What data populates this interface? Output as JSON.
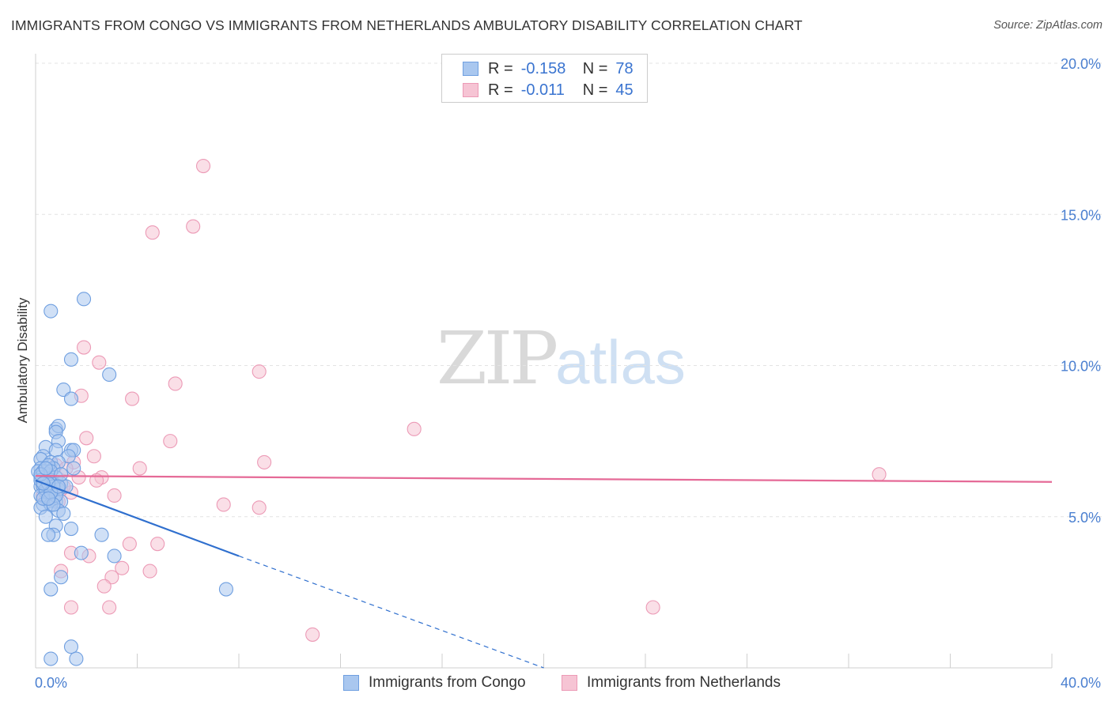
{
  "title": "IMMIGRANTS FROM CONGO VS IMMIGRANTS FROM NETHERLANDS AMBULATORY DISABILITY CORRELATION CHART",
  "source": "Source: ZipAtlas.com",
  "watermark": {
    "zip": "ZIP",
    "atlas": "atlas"
  },
  "legend": {
    "rows": [
      {
        "r_label": "R =",
        "r_value": "-0.158",
        "n_label": "N =",
        "n_value": "78"
      },
      {
        "r_label": "R =",
        "r_value": "-0.011",
        "n_label": "N =",
        "n_value": "45"
      }
    ]
  },
  "colors": {
    "congo_fill": "#a9c7ef",
    "congo_stroke": "#6f9fe0",
    "congo_line": "#2f6fce",
    "neth_fill": "#f6c4d4",
    "neth_stroke": "#ec9ab6",
    "neth_line": "#e56a97",
    "tick_text": "#4a7fd0",
    "grid": "#e3e3e3"
  },
  "chart_data": {
    "type": "scatter",
    "title": "IMMIGRANTS FROM CONGO VS IMMIGRANTS FROM NETHERLANDS AMBULATORY DISABILITY CORRELATION CHART",
    "xlabel": "",
    "ylabel": "Ambulatory Disability",
    "xlim": [
      0,
      40
    ],
    "ylim": [
      0,
      20
    ],
    "x_tick_labels": [
      "0.0%",
      "40.0%"
    ],
    "y_ticks": [
      5,
      10,
      15,
      20
    ],
    "y_tick_labels": [
      "5.0%",
      "10.0%",
      "15.0%",
      "20.0%"
    ],
    "grid": "horizontal dashed",
    "legend_position": "bottom-center",
    "series": [
      {
        "name": "Immigrants from Congo",
        "points": [
          [
            0.6,
            11.8
          ],
          [
            1.9,
            12.2
          ],
          [
            1.4,
            10.2
          ],
          [
            2.9,
            9.7
          ],
          [
            1.1,
            9.2
          ],
          [
            1.4,
            8.9
          ],
          [
            0.8,
            7.9
          ],
          [
            0.9,
            8.0
          ],
          [
            0.8,
            7.8
          ],
          [
            0.9,
            7.5
          ],
          [
            0.4,
            7.3
          ],
          [
            0.8,
            7.2
          ],
          [
            1.4,
            7.2
          ],
          [
            1.5,
            7.2
          ],
          [
            0.3,
            7.0
          ],
          [
            1.3,
            7.0
          ],
          [
            0.2,
            6.9
          ],
          [
            0.6,
            6.8
          ],
          [
            0.9,
            6.8
          ],
          [
            0.2,
            6.6
          ],
          [
            0.7,
            6.6
          ],
          [
            1.5,
            6.6
          ],
          [
            0.1,
            6.5
          ],
          [
            0.3,
            6.4
          ],
          [
            0.5,
            6.4
          ],
          [
            0.8,
            6.3
          ],
          [
            0.2,
            6.3
          ],
          [
            0.4,
            6.2
          ],
          [
            0.6,
            6.2
          ],
          [
            0.7,
            6.1
          ],
          [
            1.0,
            6.1
          ],
          [
            0.2,
            6.0
          ],
          [
            0.3,
            6.0
          ],
          [
            0.6,
            5.9
          ],
          [
            0.9,
            5.9
          ],
          [
            0.4,
            5.8
          ],
          [
            0.2,
            5.7
          ],
          [
            0.7,
            5.6
          ],
          [
            0.5,
            5.5
          ],
          [
            0.8,
            5.5
          ],
          [
            1.0,
            5.5
          ],
          [
            0.3,
            5.4
          ],
          [
            0.6,
            5.4
          ],
          [
            0.2,
            5.3
          ],
          [
            0.9,
            5.2
          ],
          [
            1.1,
            5.1
          ],
          [
            0.4,
            5.0
          ],
          [
            0.8,
            4.7
          ],
          [
            1.4,
            4.6
          ],
          [
            0.7,
            4.4
          ],
          [
            0.5,
            4.4
          ],
          [
            2.6,
            4.4
          ],
          [
            1.8,
            3.8
          ],
          [
            3.1,
            3.7
          ],
          [
            1.0,
            3.0
          ],
          [
            0.6,
            2.6
          ],
          [
            7.5,
            2.6
          ],
          [
            1.4,
            0.7
          ],
          [
            0.6,
            0.3
          ],
          [
            1.6,
            0.3
          ],
          [
            0.3,
            6.5
          ],
          [
            0.5,
            6.7
          ],
          [
            1.2,
            6.0
          ],
          [
            0.2,
            6.2
          ],
          [
            0.7,
            6.0
          ],
          [
            0.4,
            5.9
          ],
          [
            0.6,
            6.5
          ],
          [
            0.3,
            5.6
          ],
          [
            1.0,
            6.4
          ],
          [
            0.5,
            6.1
          ],
          [
            0.8,
            5.7
          ],
          [
            0.2,
            6.4
          ],
          [
            0.4,
            6.6
          ],
          [
            0.6,
            5.8
          ],
          [
            0.9,
            6.0
          ],
          [
            0.3,
            6.1
          ],
          [
            0.7,
            5.4
          ],
          [
            0.5,
            5.6
          ]
        ]
      },
      {
        "name": "Immigrants from Netherlands",
        "points": [
          [
            6.6,
            16.6
          ],
          [
            4.6,
            14.4
          ],
          [
            6.2,
            14.6
          ],
          [
            1.9,
            10.6
          ],
          [
            2.5,
            10.1
          ],
          [
            8.8,
            9.8
          ],
          [
            5.5,
            9.4
          ],
          [
            1.8,
            9.0
          ],
          [
            3.8,
            8.9
          ],
          [
            14.9,
            7.9
          ],
          [
            2.0,
            7.6
          ],
          [
            5.3,
            7.5
          ],
          [
            2.3,
            7.0
          ],
          [
            9.0,
            6.8
          ],
          [
            4.1,
            6.6
          ],
          [
            1.5,
            6.8
          ],
          [
            1.7,
            6.3
          ],
          [
            2.6,
            6.3
          ],
          [
            2.4,
            6.2
          ],
          [
            0.8,
            6.7
          ],
          [
            1.2,
            6.6
          ],
          [
            3.1,
            5.7
          ],
          [
            7.4,
            5.4
          ],
          [
            8.8,
            5.3
          ],
          [
            1.4,
            5.8
          ],
          [
            0.4,
            5.6
          ],
          [
            0.9,
            5.5
          ],
          [
            3.7,
            4.1
          ],
          [
            4.8,
            4.1
          ],
          [
            1.4,
            3.8
          ],
          [
            2.1,
            3.7
          ],
          [
            3.4,
            3.3
          ],
          [
            4.5,
            3.2
          ],
          [
            1.0,
            3.2
          ],
          [
            3.0,
            3.0
          ],
          [
            2.7,
            2.7
          ],
          [
            1.4,
            2.0
          ],
          [
            2.9,
            2.0
          ],
          [
            24.3,
            2.0
          ],
          [
            10.9,
            1.1
          ],
          [
            33.2,
            6.4
          ],
          [
            0.6,
            6.1
          ],
          [
            1.0,
            5.9
          ],
          [
            0.3,
            5.7
          ],
          [
            1.1,
            6.0
          ]
        ]
      }
    ],
    "trendlines": [
      {
        "series": "Immigrants from Congo",
        "x": [
          0.0,
          8.0
        ],
        "y": [
          6.2,
          3.7
        ],
        "style": "solid"
      },
      {
        "series": "Immigrants from Congo",
        "x": [
          8.0,
          20.0
        ],
        "y": [
          3.7,
          0.0
        ],
        "style": "dashed"
      },
      {
        "series": "Immigrants from Netherlands",
        "x": [
          0.0,
          40.0
        ],
        "y": [
          6.35,
          6.15
        ],
        "style": "solid"
      }
    ]
  }
}
